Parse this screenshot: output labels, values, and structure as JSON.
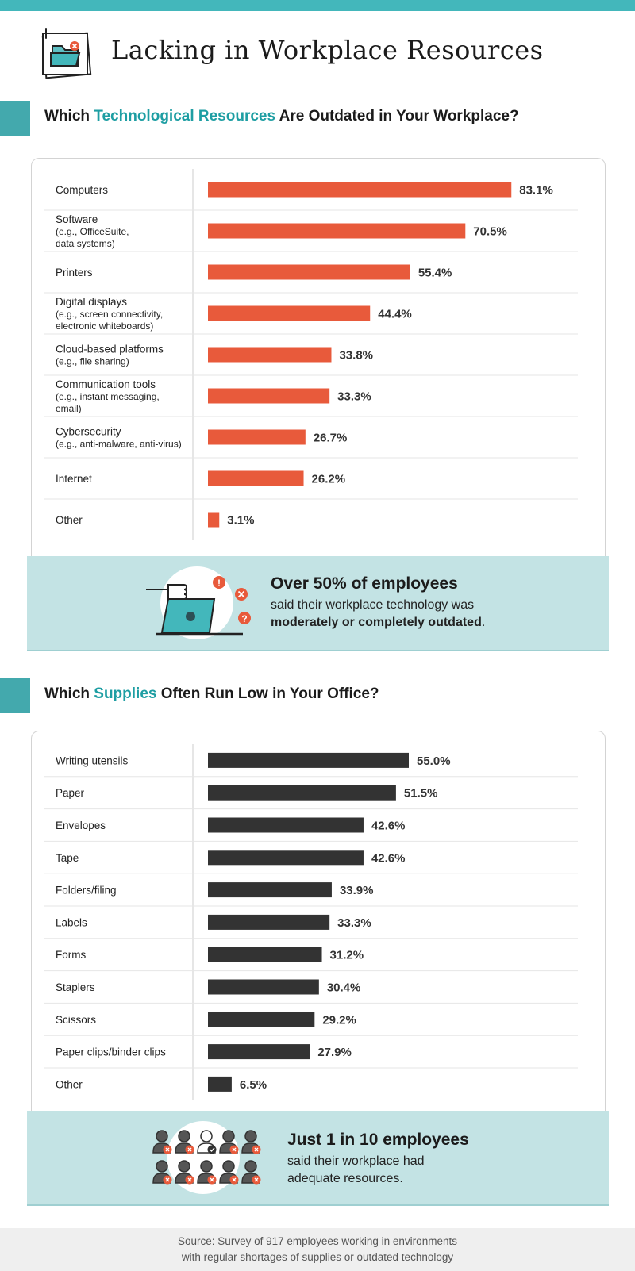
{
  "page": {
    "title": "Lacking in Workplace Resources",
    "source_line1": "Source: Survey of 917 employees working in environments",
    "source_line2": "with regular shortages of supplies or outdated technology"
  },
  "colors": {
    "accent": "#43b7bb",
    "tech_bar": "#e85a3b",
    "supply_bar": "#333333",
    "callout_bg": "#c3e3e4",
    "highlight_text": "#1e9ea3"
  },
  "section1": {
    "title_pre": "Which ",
    "title_hl": "Technological Resources",
    "title_post": " Are Outdated in Your Workplace?"
  },
  "section2": {
    "title_pre": "Which ",
    "title_hl": "Supplies",
    "title_post": " Often Run Low in Your Office?"
  },
  "callout1": {
    "headline": "Over 50% of employees",
    "line1": "said their workplace technology was",
    "line2": "moderately or completely outdated",
    "line2_end": ".",
    "icon": "laptop-thumbs-down-icon"
  },
  "callout2": {
    "headline": "Just 1 in 10 employees",
    "line1": "said their workplace had",
    "line2": "adequate resources.",
    "icon": "people-grid-icon"
  },
  "chart_data": [
    {
      "type": "bar",
      "orientation": "horizontal",
      "categories": [
        [
          "Computers"
        ],
        [
          "Software",
          "(e.g., OfficeSuite,",
          "data systems)"
        ],
        [
          "Printers"
        ],
        [
          "Digital displays",
          "(e.g., screen connectivity,",
          "electronic whiteboards)"
        ],
        [
          "Cloud-based platforms",
          "(e.g., file sharing)"
        ],
        [
          "Communication tools",
          "(e.g., instant messaging,",
          "email)"
        ],
        [
          "Cybersecurity",
          "(e.g., anti-malware, anti-virus)"
        ],
        [
          "Internet"
        ],
        [
          "Other"
        ]
      ],
      "values": [
        83.1,
        70.5,
        55.4,
        44.4,
        33.8,
        33.3,
        26.7,
        26.2,
        3.1
      ],
      "value_labels": [
        "83.1%",
        "70.5%",
        "55.4%",
        "44.4%",
        "33.8%",
        "33.3%",
        "26.7%",
        "26.2%",
        "3.1%"
      ],
      "xlim": [
        0,
        100
      ],
      "grid": false
    },
    {
      "type": "bar",
      "orientation": "horizontal",
      "categories": [
        [
          "Writing utensils"
        ],
        [
          "Paper"
        ],
        [
          "Envelopes"
        ],
        [
          "Tape"
        ],
        [
          "Folders/filing"
        ],
        [
          "Labels"
        ],
        [
          "Forms"
        ],
        [
          "Staplers"
        ],
        [
          "Scissors"
        ],
        [
          "Paper clips/binder clips"
        ],
        [
          "Other"
        ]
      ],
      "values": [
        55.0,
        51.5,
        42.6,
        42.6,
        33.9,
        33.3,
        31.2,
        30.4,
        29.2,
        27.9,
        6.5
      ],
      "value_labels": [
        "55.0%",
        "51.5%",
        "42.6%",
        "42.6%",
        "33.9%",
        "33.3%",
        "31.2%",
        "30.4%",
        "29.2%",
        "27.9%",
        "6.5%"
      ],
      "xlim": [
        0,
        100
      ],
      "grid": false
    }
  ]
}
